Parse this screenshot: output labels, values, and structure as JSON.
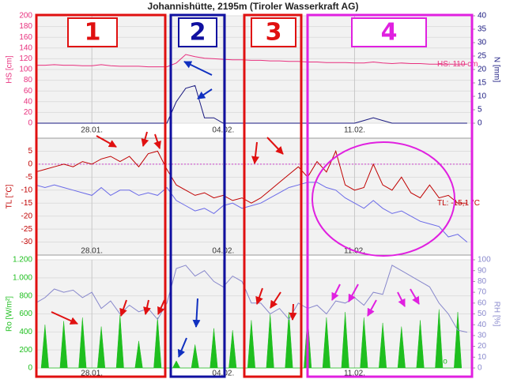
{
  "title": "Johannishütte, 2195m (Tiroler Wasserkraft AG)",
  "annotations": [
    "1",
    "2",
    "3",
    "4"
  ],
  "chart_data": [
    {
      "type": "line",
      "x": [
        0,
        0.5,
        1,
        1.5,
        2,
        2.5,
        3,
        3.5,
        4,
        4.5,
        5,
        5.5,
        6,
        6.5,
        7,
        7.5,
        8,
        8.5,
        9,
        9.5,
        10,
        10.5,
        11,
        11.5,
        12,
        12.5,
        13,
        13.5,
        14,
        14.5,
        15,
        15.5,
        16,
        16.5,
        17,
        17.5,
        18,
        18.5,
        19,
        19.5,
        20,
        20.5,
        21,
        21.5,
        22,
        22.5,
        23
      ],
      "xlim": [
        0,
        23.3
      ],
      "xticks": [
        {
          "value": 3,
          "label": "28.01."
        },
        {
          "value": 10,
          "label": "04.02."
        },
        {
          "value": 17,
          "label": "11.02."
        }
      ],
      "ylabel": "HS [cm]",
      "ylim": [
        0,
        200
      ],
      "yticks": [
        0,
        20,
        40,
        60,
        80,
        100,
        120,
        140,
        160,
        180,
        200
      ],
      "y2label": "N [mm]",
      "y2lim": [
        0,
        40
      ],
      "y2ticks": [
        0,
        5,
        10,
        15,
        20,
        25,
        30,
        35,
        40
      ],
      "grid": true,
      "series": [
        {
          "name": "HS: 110 cm",
          "color": "#e8307e",
          "values": [
            108,
            108,
            109,
            108,
            108,
            107,
            107,
            109,
            107,
            106,
            106,
            106,
            105,
            105,
            105,
            112,
            128,
            124,
            121,
            120,
            119,
            118,
            118,
            117,
            117,
            116,
            116,
            115,
            115,
            114,
            114,
            113,
            113,
            113,
            112,
            112,
            114,
            112,
            111,
            112,
            111,
            111,
            110,
            110,
            110,
            110,
            110
          ]
        },
        {
          "color": "#1a1a80",
          "axis": "y2",
          "values": [
            0,
            0,
            0,
            0,
            0,
            0,
            0,
            0,
            0,
            0,
            0,
            0,
            0,
            0,
            0,
            8,
            13,
            14,
            2,
            2,
            0,
            0,
            0,
            0,
            0,
            0,
            0,
            0,
            0,
            0,
            0,
            0,
            0,
            0,
            0,
            1,
            2,
            1,
            0,
            0,
            0,
            0,
            0,
            0,
            0,
            0,
            0
          ]
        }
      ]
    },
    {
      "type": "line",
      "x": [
        0,
        0.5,
        1,
        1.5,
        2,
        2.5,
        3,
        3.5,
        4,
        4.5,
        5,
        5.5,
        6,
        6.5,
        7,
        7.5,
        8,
        8.5,
        9,
        9.5,
        10,
        10.5,
        11,
        11.5,
        12,
        12.5,
        13,
        13.5,
        14,
        14.5,
        15,
        15.5,
        16,
        16.5,
        17,
        17.5,
        18,
        18.5,
        19,
        19.5,
        20,
        20.5,
        21,
        21.5,
        22,
        22.5,
        23
      ],
      "xlim": [
        0,
        23.3
      ],
      "xticks": [
        {
          "value": 3,
          "label": "28.01."
        },
        {
          "value": 10,
          "label": "04.02."
        },
        {
          "value": 17,
          "label": "11.02."
        }
      ],
      "ylabel": "TL [°C]",
      "ylim": [
        -35,
        10
      ],
      "yticks": [
        5,
        0,
        -5,
        -10,
        -15,
        -20,
        -25,
        -30
      ],
      "grid": true,
      "zero_line": true,
      "series": [
        {
          "name": "TL: -15,1 °C",
          "color": "#c00000",
          "values": [
            -3,
            -2,
            -1,
            0,
            -1,
            1,
            0,
            2,
            3,
            1,
            3,
            -1,
            4,
            5,
            -2,
            -8,
            -10,
            -12,
            -11,
            -13,
            -12,
            -14,
            -13,
            -15,
            -13,
            -10,
            -7,
            -4,
            -1,
            -5,
            1,
            -3,
            5,
            -8,
            -10,
            -9,
            0,
            -8,
            -10,
            -5,
            -11,
            -13,
            -8,
            -13,
            -12,
            -15,
            -15
          ]
        },
        {
          "color": "#6a6ae8",
          "values": [
            -8,
            -9,
            -8,
            -9,
            -10,
            -11,
            -12,
            -9,
            -12,
            -10,
            -10,
            -12,
            -11,
            -12,
            -9,
            -14,
            -16,
            -18,
            -17,
            -19,
            -16,
            -15,
            -17,
            -16,
            -15,
            -13,
            -11,
            -9,
            -8,
            -7,
            -7,
            -9,
            -10,
            -13,
            -15,
            -17,
            -14,
            -17,
            -19,
            -18,
            -20,
            -22,
            -23,
            -24,
            -28,
            -27,
            -30
          ]
        }
      ]
    },
    {
      "type": "line",
      "x": [
        0,
        0.5,
        1,
        1.5,
        2,
        2.5,
        3,
        3.5,
        4,
        4.5,
        5,
        5.5,
        6,
        6.5,
        7,
        7.5,
        8,
        8.5,
        9,
        9.5,
        10,
        10.5,
        11,
        11.5,
        12,
        12.5,
        13,
        13.5,
        14,
        14.5,
        15,
        15.5,
        16,
        16.5,
        17,
        17.5,
        18,
        18.5,
        19,
        19.5,
        20,
        20.5,
        21,
        21.5,
        22,
        22.5,
        23
      ],
      "xlim": [
        0,
        23.3
      ],
      "xticks": [
        {
          "value": 3,
          "label": "28.01."
        },
        {
          "value": 10,
          "label": "04.02."
        },
        {
          "value": 17,
          "label": "11.02."
        }
      ],
      "ylabel": "Ro [W/m²]",
      "ylim": [
        0,
        1200
      ],
      "yticks": [
        0,
        200,
        400,
        600,
        800,
        {
          "value": 1000,
          "label": "1.000"
        },
        {
          "value": 1200,
          "label": "1.200"
        }
      ],
      "y2label": "RH [%]",
      "y2lim": [
        0,
        100
      ],
      "y2ticks": [
        0,
        10,
        20,
        30,
        40,
        50,
        60,
        70,
        80,
        90,
        100
      ],
      "grid": true,
      "series": [
        {
          "name": "Ro",
          "color": "#1fbf1f",
          "type": "area",
          "x": [
            0.3,
            0.5,
            0.7,
            1.3,
            1.5,
            1.7,
            2.3,
            2.5,
            2.7,
            3.3,
            3.5,
            3.7,
            4.3,
            4.5,
            4.7,
            5.3,
            5.5,
            5.7,
            6.3,
            6.5,
            6.7,
            7.3,
            7.5,
            7.7,
            8.3,
            8.5,
            8.7,
            9.3,
            9.5,
            9.7,
            10.3,
            10.5,
            10.7,
            11.3,
            11.5,
            11.7,
            12.3,
            12.5,
            12.7,
            13.3,
            13.5,
            13.7,
            14.3,
            14.5,
            14.7,
            15.3,
            15.5,
            15.7,
            16.3,
            16.5,
            16.7,
            17.3,
            17.5,
            17.7,
            18.3,
            18.5,
            18.7,
            19.3,
            19.5,
            19.7,
            20.3,
            20.5,
            20.7,
            21.3,
            21.5,
            21.7,
            22.3,
            22.5,
            22.7
          ],
          "values": [
            0,
            480,
            0,
            0,
            520,
            0,
            0,
            560,
            0,
            0,
            460,
            0,
            0,
            590,
            0,
            0,
            300,
            0,
            0,
            560,
            0,
            0,
            80,
            0,
            0,
            260,
            0,
            0,
            440,
            0,
            0,
            420,
            0,
            0,
            530,
            0,
            0,
            600,
            0,
            0,
            620,
            0,
            0,
            580,
            0,
            0,
            560,
            0,
            0,
            620,
            0,
            0,
            560,
            0,
            0,
            500,
            0,
            0,
            460,
            0,
            0,
            530,
            0,
            0,
            650,
            0,
            0,
            620,
            0
          ]
        },
        {
          "color": "#8888cc",
          "axis": "y2",
          "values": [
            60,
            65,
            73,
            70,
            72,
            65,
            70,
            55,
            62,
            50,
            58,
            52,
            55,
            45,
            60,
            92,
            95,
            85,
            90,
            80,
            75,
            85,
            80,
            60,
            60,
            50,
            55,
            45,
            60,
            55,
            58,
            50,
            62,
            60,
            65,
            58,
            70,
            68,
            95,
            90,
            85,
            80,
            75,
            60,
            50,
            35,
            33
          ]
        }
      ]
    }
  ]
}
